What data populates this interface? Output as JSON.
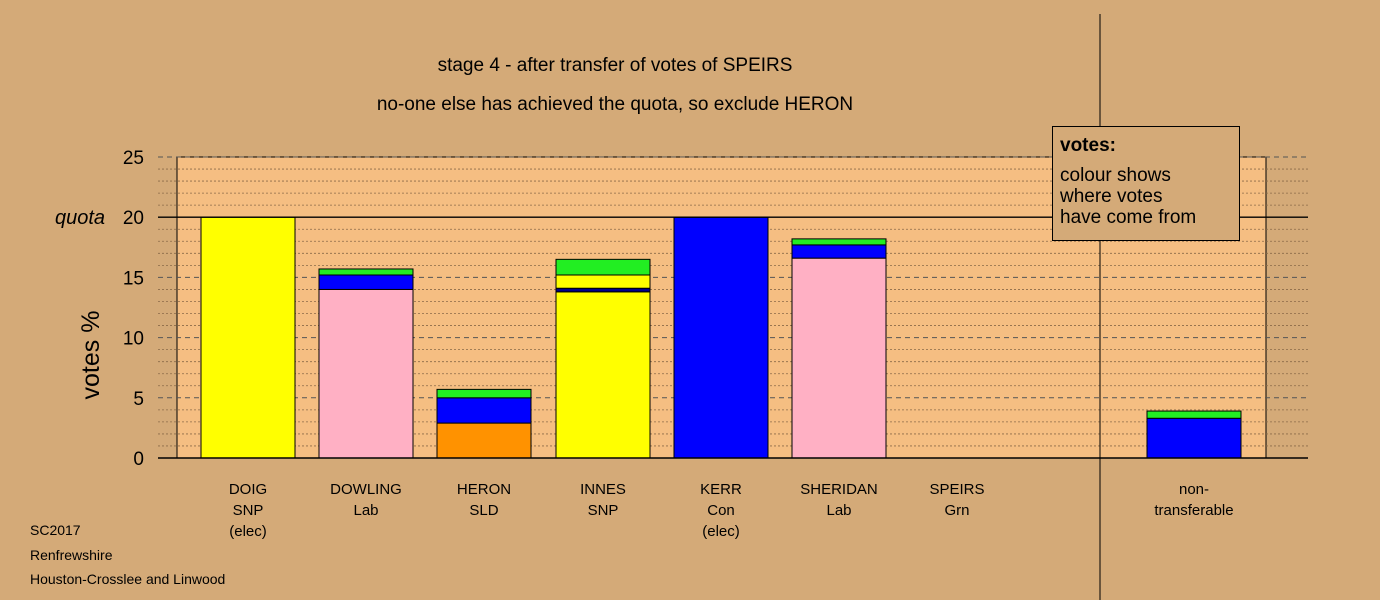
{
  "title_line1": "stage 4 - after transfer of votes of SPEIRS",
  "title_line2": "no-one else has achieved the quota, so exclude HERON",
  "footer": [
    "SC2017",
    "Renfrewshire",
    "Houston-Crosslee and Linwood"
  ],
  "legend": {
    "title": "votes:",
    "lines": [
      "colour shows",
      "where votes",
      "have come from"
    ]
  },
  "colors": {
    "background": "#d4aa78",
    "plot": "#f5be82",
    "SNP": "#ffff00",
    "Lab": "#ffb0c4",
    "SLD": "#ff9200",
    "Con": "#0000ff",
    "Grn": "#22ee22",
    "dark": "#00008b"
  },
  "chart_data": {
    "type": "bar",
    "stacked": true,
    "ylabel": "votes %",
    "ylim": [
      0,
      25
    ],
    "yticks": [
      0,
      5,
      10,
      15,
      20,
      25
    ],
    "quota": 20,
    "quota_label": "quota",
    "grid": true,
    "categories": [
      {
        "name": "DOIG",
        "party": "SNP",
        "note": "(elec)"
      },
      {
        "name": "DOWLING",
        "party": "Lab",
        "note": ""
      },
      {
        "name": "HERON",
        "party": "SLD",
        "note": ""
      },
      {
        "name": "INNES",
        "party": "SNP",
        "note": ""
      },
      {
        "name": "KERR",
        "party": "Con",
        "note": "(elec)"
      },
      {
        "name": "SHERIDAN",
        "party": "Lab",
        "note": ""
      },
      {
        "name": "SPEIRS",
        "party": "Grn",
        "note": ""
      },
      {
        "name": "non-",
        "party": "transferable",
        "note": ""
      }
    ],
    "stacks": [
      [
        {
          "value": 20.0,
          "color": "SNP"
        }
      ],
      [
        {
          "value": 14.0,
          "color": "Lab"
        },
        {
          "value": 1.2,
          "color": "Con"
        },
        {
          "value": 0.5,
          "color": "Grn"
        }
      ],
      [
        {
          "value": 2.9,
          "color": "SLD"
        },
        {
          "value": 2.1,
          "color": "Con"
        },
        {
          "value": 0.7,
          "color": "Grn"
        }
      ],
      [
        {
          "value": 13.8,
          "color": "SNP"
        },
        {
          "value": 0.3,
          "color": "dark"
        },
        {
          "value": 1.1,
          "color": "SNP"
        },
        {
          "value": 1.3,
          "color": "Grn"
        }
      ],
      [
        {
          "value": 20.0,
          "color": "Con"
        }
      ],
      [
        {
          "value": 16.6,
          "color": "Lab"
        },
        {
          "value": 1.1,
          "color": "Con"
        },
        {
          "value": 0.5,
          "color": "Grn"
        }
      ],
      [],
      [
        {
          "value": 3.3,
          "color": "Con"
        },
        {
          "value": 0.6,
          "color": "Grn"
        }
      ]
    ]
  }
}
